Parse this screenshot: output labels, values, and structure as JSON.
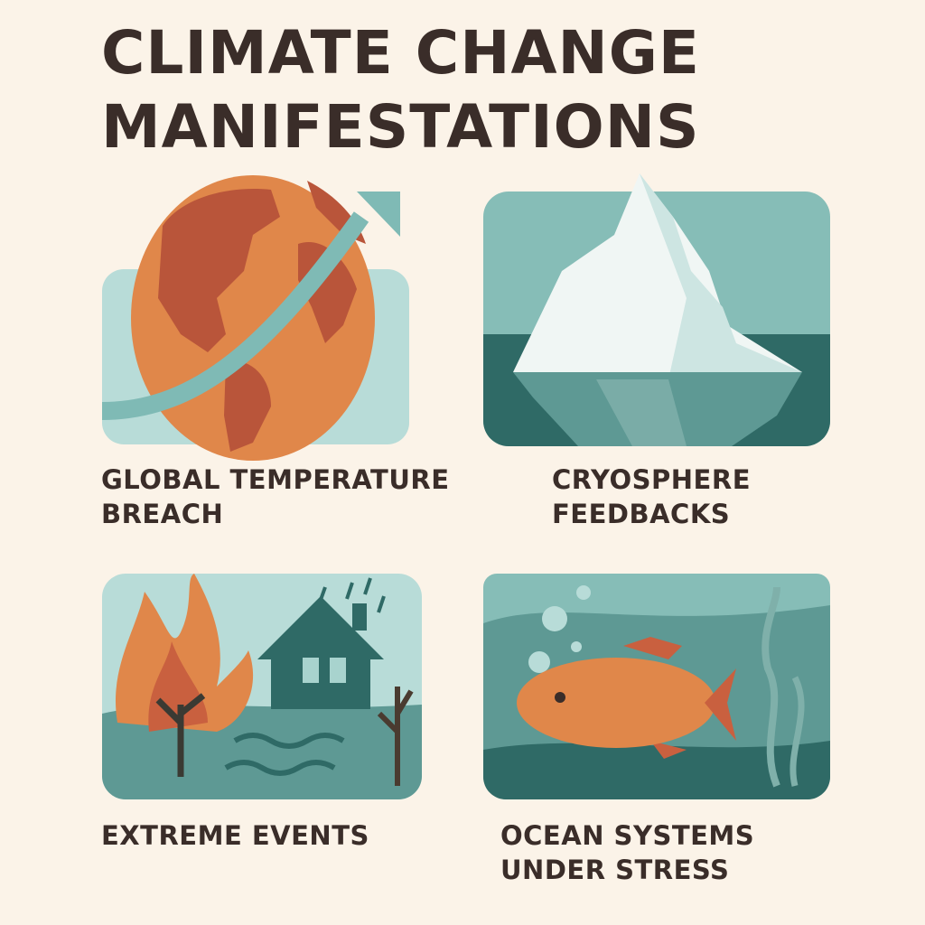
{
  "title": {
    "line1": "CLIMATE CHANGE",
    "line2": "MANIFESTATIONS"
  },
  "panels": [
    {
      "id": "global-temperature",
      "label_line1": "GLOBAL TEMPERATURE",
      "label_line2": "BREACH",
      "icon": "globe-with-rising-arrow"
    },
    {
      "id": "cryosphere",
      "label_line1": "CRYOSPHERE",
      "label_line2": "FEEDBACKS",
      "icon": "iceberg"
    },
    {
      "id": "extreme-events",
      "label_line1": "EXTREME EVENTS",
      "icon": "wildfire-flood-house"
    },
    {
      "id": "ocean-systems",
      "label_line1": "OCEAN SYSTEMS",
      "label_line2": "UNDER STRESS",
      "icon": "fish-underwater"
    }
  ],
  "colors": {
    "background": "#fbf3e8",
    "text": "#3a2d29",
    "teal_light": "#b5dad6",
    "teal_mid": "#7fb8b3",
    "teal_dark": "#2f6a66",
    "orange": "#e0874a",
    "rust": "#b9553a"
  }
}
